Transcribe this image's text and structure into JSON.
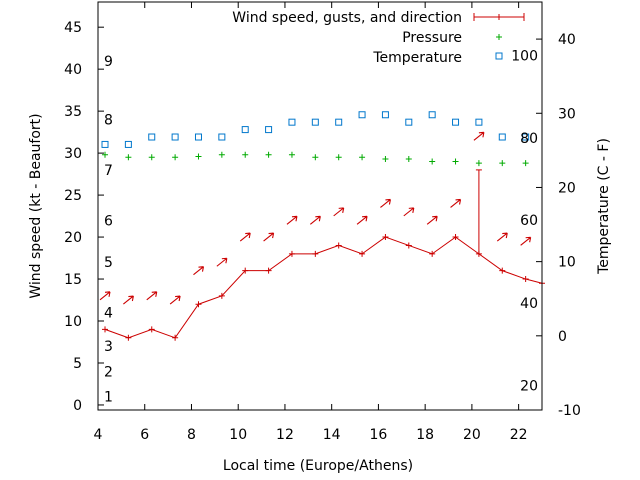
{
  "chart_data": {
    "type": "line",
    "xlabel": "Local time (Europe/Athens)",
    "ylabel": "Wind speed (kt - Beaufort)",
    "y2label": "Temperature (C - F)",
    "xlim": [
      4,
      23
    ],
    "ylim": [
      -0.6,
      48
    ],
    "y2lim": [
      -10,
      45
    ],
    "x_ticks": [
      "4",
      "6",
      "8",
      "10",
      "12",
      "14",
      "16",
      "18",
      "20",
      "22"
    ],
    "y_ticks": [
      "0",
      "5",
      "10",
      "15",
      "20",
      "25",
      "30",
      "35",
      "40",
      "45"
    ],
    "y2_ticks": [
      "-10",
      "0",
      "10",
      "20",
      "30",
      "40"
    ],
    "beaufort_labels": [
      {
        "text": "1",
        "kt": 1
      },
      {
        "text": "2",
        "kt": 4
      },
      {
        "text": "3",
        "kt": 7
      },
      {
        "text": "4",
        "kt": 11
      },
      {
        "text": "5",
        "kt": 17
      },
      {
        "text": "6",
        "kt": 22
      },
      {
        "text": "7",
        "kt": 28
      },
      {
        "text": "8",
        "kt": 34
      },
      {
        "text": "9",
        "kt": 41
      }
    ],
    "fahrenheit_labels": [
      {
        "text": "20",
        "c": -6.7
      },
      {
        "text": "40",
        "c": 4.4
      },
      {
        "text": "60",
        "c": 15.6
      },
      {
        "text": "80",
        "c": 26.7
      },
      {
        "text": "100",
        "c": 37.8
      }
    ],
    "legend_position": "top-right",
    "series": [
      {
        "name": "Wind speed, gusts, and direction",
        "color": "#cc0000",
        "x": [
          4.3,
          5.3,
          6.3,
          7.3,
          8.3,
          9.3,
          10.3,
          11.3,
          12.3,
          13.3,
          14.3,
          15.3,
          16.3,
          17.3,
          18.3,
          19.3,
          20.3,
          21.3,
          22.3,
          23
        ],
        "values": [
          9,
          8,
          9,
          8,
          12,
          13,
          16,
          16,
          18,
          18,
          19,
          18,
          20,
          19,
          18,
          20,
          18,
          16,
          15,
          14.5
        ],
        "gusts": [
          {
            "x": 20.3,
            "value": 28
          }
        ],
        "direction_arrows": {
          "x": [
            4.3,
            5.3,
            6.3,
            7.3,
            8.3,
            9.3,
            10.3,
            11.3,
            12.3,
            13.3,
            14.3,
            15.3,
            16.3,
            17.3,
            18.3,
            19.3,
            20.3,
            21.3,
            22.3
          ],
          "y": [
            13,
            12.5,
            13,
            12.5,
            16,
            17,
            20,
            20,
            22,
            22,
            23,
            22,
            24,
            23,
            22,
            24,
            32,
            20,
            19.5
          ]
        }
      },
      {
        "name": "Pressure",
        "color": "#00aa00",
        "x": [
          4.3,
          5.3,
          6.3,
          7.3,
          8.3,
          9.3,
          10.3,
          11.3,
          12.3,
          13.3,
          14.3,
          15.3,
          16.3,
          17.3,
          18.3,
          19.3,
          20.3,
          21.3,
          22.3
        ],
        "values": [
          29.8,
          29.5,
          29.5,
          29.5,
          29.6,
          29.8,
          29.8,
          29.8,
          29.8,
          29.5,
          29.5,
          29.5,
          29.3,
          29.3,
          29.0,
          29.0,
          28.8,
          28.8,
          28.8
        ]
      },
      {
        "name": "Temperature",
        "color": "#0077cc",
        "axis": "right",
        "x": [
          4.3,
          5.3,
          6.3,
          7.3,
          8.3,
          9.3,
          10.3,
          11.3,
          12.3,
          13.3,
          14.3,
          15.3,
          16.3,
          17.3,
          18.3,
          19.3,
          20.3,
          21.3,
          22.3
        ],
        "values": [
          25.8,
          25.8,
          26.8,
          26.8,
          26.8,
          26.8,
          27.8,
          27.8,
          28.8,
          28.8,
          28.8,
          29.8,
          29.8,
          28.8,
          29.8,
          28.8,
          28.8,
          26.8,
          26.8
        ]
      }
    ]
  }
}
